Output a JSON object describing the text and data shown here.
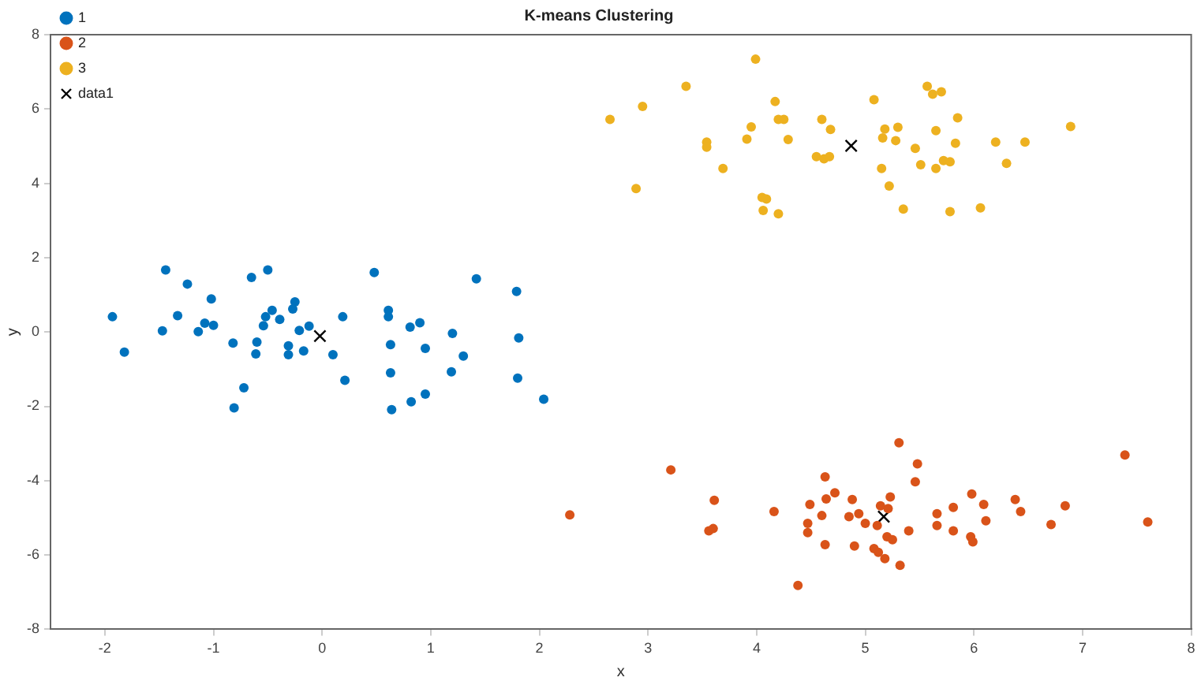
{
  "chart_data": {
    "type": "scatter",
    "title": "K-means Clustering",
    "xlabel": "x",
    "ylabel": "y",
    "xlim": [
      -2.5,
      8
    ],
    "xticks": [
      -2,
      -1,
      0,
      1,
      2,
      3,
      4,
      5,
      6,
      7,
      8
    ],
    "ylim": [
      -8,
      8
    ],
    "yticks": [
      -8,
      -6,
      -4,
      -2,
      0,
      2,
      4,
      6,
      8
    ],
    "grid": false,
    "legend": "top left",
    "series": [
      {
        "name": "1",
        "color": "#0072bd",
        "marker": "circle",
        "x": [
          -1.93,
          -1.82,
          -1.44,
          -1.47,
          -1.24,
          -1.33,
          -1.14,
          -1.08,
          -1.0,
          -1.02,
          -0.82,
          -0.81,
          -0.72,
          -0.65,
          -0.6,
          -0.61,
          -0.5,
          -0.54,
          -0.52,
          -0.46,
          -0.39,
          -0.31,
          -0.31,
          -0.25,
          -0.27,
          -0.21,
          -0.17,
          -0.12,
          0.1,
          0.19,
          0.21,
          0.48,
          0.61,
          0.61,
          0.63,
          0.63,
          0.64,
          0.81,
          0.9,
          0.95,
          0.82,
          0.95,
          1.2,
          1.19,
          1.3,
          1.42,
          1.79,
          1.81,
          1.8,
          2.04
        ],
        "values": [
          0.41,
          -0.54,
          1.67,
          0.03,
          1.29,
          0.44,
          0.01,
          0.24,
          0.18,
          0.89,
          -0.3,
          -2.04,
          -1.5,
          1.47,
          -0.27,
          -0.59,
          1.67,
          0.17,
          0.41,
          0.58,
          0.34,
          -0.37,
          -0.61,
          0.81,
          0.62,
          0.04,
          -0.51,
          0.16,
          -0.61,
          0.41,
          -1.3,
          1.6,
          0.58,
          0.41,
          -0.34,
          -1.1,
          -2.09,
          0.13,
          0.25,
          -0.44,
          -1.88,
          -1.67,
          -0.04,
          -1.07,
          -0.65,
          1.43,
          1.09,
          -0.16,
          -1.24,
          -1.81
        ]
      },
      {
        "name": "2",
        "color": "#d95319",
        "marker": "circle",
        "x": [
          2.28,
          3.21,
          3.61,
          3.56,
          3.6,
          4.16,
          4.38,
          4.49,
          4.47,
          4.47,
          4.6,
          4.63,
          4.64,
          4.63,
          4.72,
          4.88,
          4.85,
          4.94,
          5.0,
          4.9,
          5.08,
          5.12,
          5.18,
          5.32,
          5.11,
          5.14,
          5.21,
          5.23,
          5.2,
          5.25,
          5.31,
          5.48,
          5.46,
          5.4,
          5.66,
          5.66,
          5.81,
          5.81,
          5.98,
          6.09,
          6.11,
          5.97,
          5.99,
          6.38,
          6.43,
          6.71,
          6.84,
          7.39,
          7.6
        ],
        "values": [
          -4.92,
          -3.71,
          -4.53,
          -5.35,
          -5.29,
          -4.83,
          -6.82,
          -4.64,
          -5.15,
          -5.4,
          -4.94,
          -5.72,
          -4.49,
          -3.9,
          -4.33,
          -4.51,
          -4.97,
          -4.89,
          -5.15,
          -5.76,
          -5.83,
          -5.93,
          -6.1,
          -6.28,
          -5.21,
          -4.68,
          -4.75,
          -4.44,
          -5.51,
          -5.59,
          -2.98,
          -3.55,
          -4.03,
          -5.35,
          -4.89,
          -5.21,
          -4.72,
          -5.35,
          -4.36,
          -4.64,
          -5.08,
          -5.51,
          -5.65,
          -4.51,
          -4.83,
          -5.18,
          -4.68,
          -3.31,
          -5.11
        ]
      },
      {
        "name": "3",
        "color": "#edb120",
        "marker": "circle",
        "x": [
          3.99,
          3.35,
          2.95,
          2.65,
          2.89,
          3.54,
          3.54,
          3.69,
          3.91,
          3.95,
          4.17,
          4.2,
          4.25,
          4.29,
          4.05,
          4.09,
          4.06,
          4.2,
          4.6,
          4.68,
          4.55,
          4.62,
          4.67,
          5.08,
          5.15,
          5.18,
          5.16,
          5.3,
          5.28,
          5.15,
          5.22,
          5.35,
          5.46,
          5.51,
          5.57,
          5.62,
          5.7,
          5.65,
          5.65,
          5.72,
          5.78,
          5.83,
          5.85,
          5.78,
          6.06,
          6.2,
          6.3,
          6.47,
          6.89
        ],
        "values": [
          7.34,
          6.61,
          6.07,
          5.72,
          3.86,
          5.11,
          4.97,
          4.4,
          5.19,
          5.52,
          6.2,
          5.72,
          5.72,
          5.18,
          3.62,
          3.58,
          3.27,
          3.18,
          5.72,
          5.45,
          4.72,
          4.66,
          4.72,
          6.25,
          null,
          5.46,
          5.22,
          5.51,
          5.15,
          4.4,
          3.93,
          3.31,
          4.94,
          4.5,
          6.61,
          6.4,
          6.46,
          5.42,
          4.4,
          4.61,
          4.58,
          5.08,
          5.76,
          3.24,
          3.34,
          5.11,
          4.54,
          5.11,
          5.53
        ]
      },
      {
        "name": "data1",
        "color": "#000000",
        "marker": "cross",
        "x": [
          -0.02,
          5.17,
          4.87
        ],
        "values": [
          -0.11,
          -4.97,
          5.01
        ]
      }
    ]
  }
}
